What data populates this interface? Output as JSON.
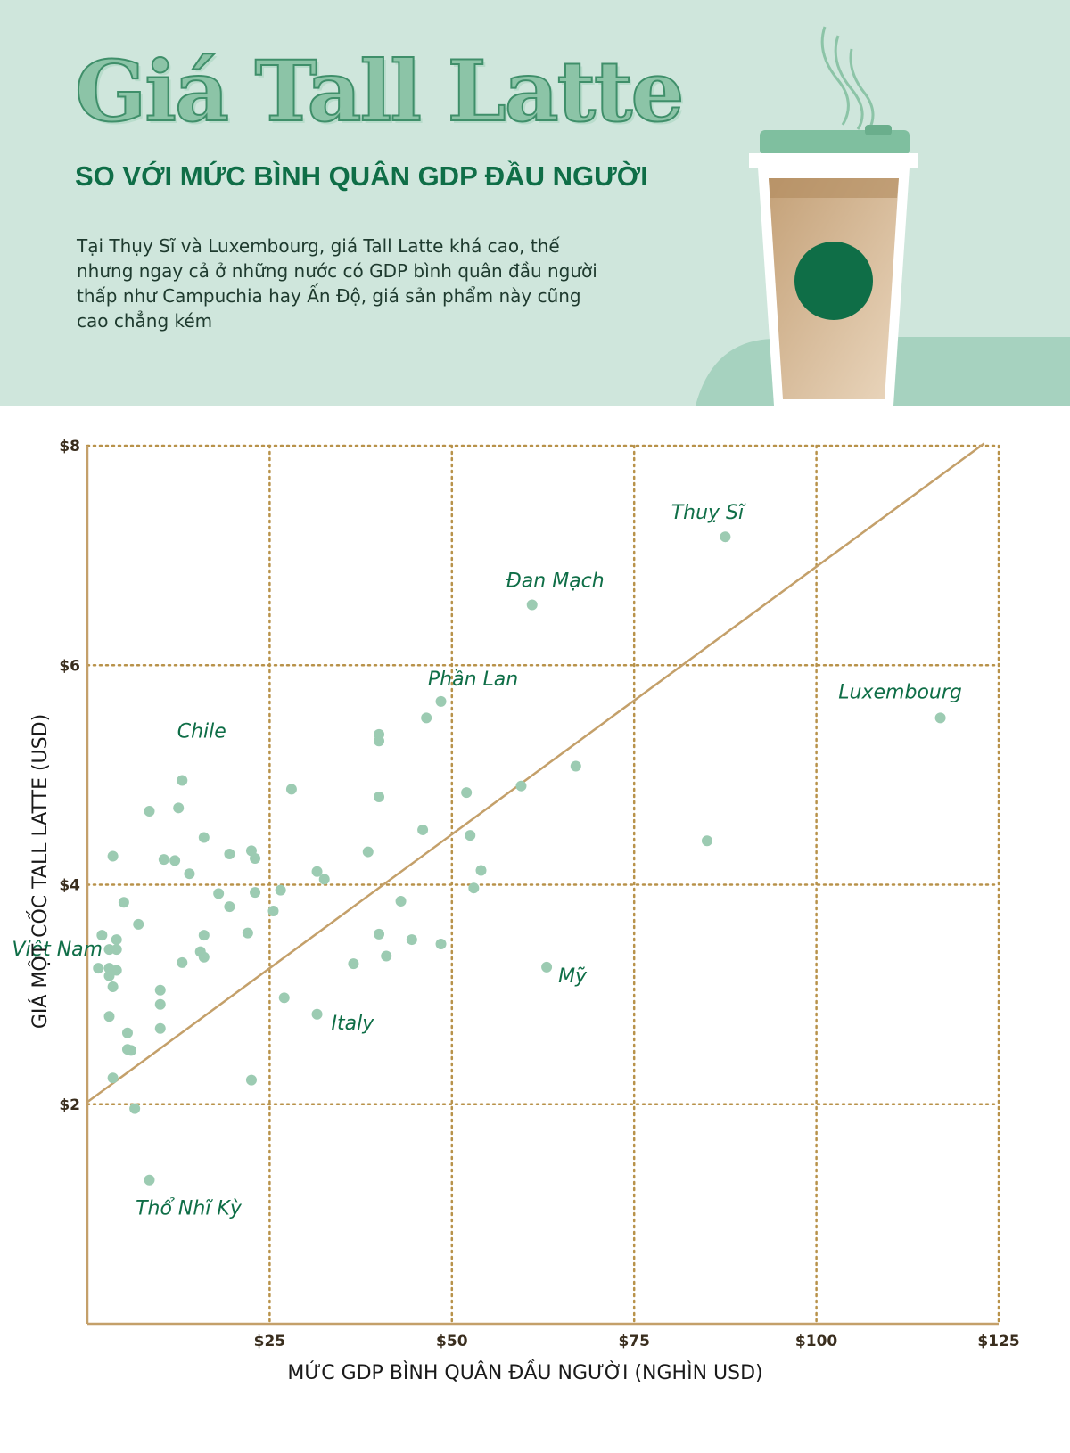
{
  "header": {
    "title": "Giá Tall Latte",
    "subtitle": "SO VỚI MỨC BÌNH QUÂN GDP ĐẦU NGƯỜI",
    "description_lines": [
      "Tại Thụy Sĩ và Luxembourg, giá Tall Latte khá cao, thế",
      "nhưng ngay cả ở những nước có GDP bình quân đầu người",
      "thấp như Campuchia hay Ấn Độ, giá sản phẩm này cũng",
      "cao chẳng kém"
    ]
  },
  "colors": {
    "header_bg": "#cfe6dc",
    "accent_green": "#0f6e47",
    "point": "#9ccbb2",
    "trend": "#c4a06a",
    "grid": "#b8924a"
  },
  "chart_data": {
    "type": "scatter",
    "xlabel": "MỨC GDP BÌNH QUÂN ĐẦU NGƯỜI (NGHÌN USD)",
    "ylabel": "GIÁ MỘT CỐC TALL LATTE (USD)",
    "xlim": [
      0,
      125
    ],
    "ylim": [
      0,
      8
    ],
    "x_ticks": [
      25,
      50,
      75,
      100,
      125
    ],
    "x_tick_labels": [
      "$25",
      "$50",
      "$75",
      "$100",
      "$125"
    ],
    "y_ticks": [
      2,
      4,
      6,
      8
    ],
    "y_tick_labels": [
      "$2",
      "$4",
      "$6",
      "$8"
    ],
    "grid": true,
    "trend_line": {
      "x": [
        0,
        123
      ],
      "y": [
        2.02,
        8.02
      ]
    },
    "labeled_points": [
      {
        "label": "Thuỵ Sĩ",
        "x": 87.5,
        "y": 7.17
      },
      {
        "label": "Đan Mạch",
        "x": 61,
        "y": 6.55
      },
      {
        "label": "Phần Lan",
        "x": 48.5,
        "y": 5.67
      },
      {
        "label": "Luxembourg",
        "x": 117,
        "y": 5.52
      },
      {
        "label": "Chile",
        "x": 13,
        "y": 4.95
      },
      {
        "label": "Việt Nam",
        "x": 1.5,
        "y": 3.24
      },
      {
        "label": "Mỹ",
        "x": 63,
        "y": 3.25
      },
      {
        "label": "Italy",
        "x": 31.5,
        "y": 2.82
      },
      {
        "label": "Thổ Nhĩ Kỳ",
        "x": 8.5,
        "y": 1.31
      }
    ],
    "points": [
      [
        87.5,
        7.17
      ],
      [
        61,
        6.55
      ],
      [
        48.5,
        5.67
      ],
      [
        117,
        5.52
      ],
      [
        46.5,
        5.52
      ],
      [
        40,
        5.37
      ],
      [
        40,
        5.31
      ],
      [
        67,
        5.08
      ],
      [
        59.5,
        4.9
      ],
      [
        28,
        4.87
      ],
      [
        52,
        4.84
      ],
      [
        40,
        4.8
      ],
      [
        13,
        4.95
      ],
      [
        12.5,
        4.7
      ],
      [
        8.5,
        4.67
      ],
      [
        46,
        4.5
      ],
      [
        52.5,
        4.45
      ],
      [
        85,
        4.4
      ],
      [
        16,
        4.43
      ],
      [
        22.5,
        4.31
      ],
      [
        19.5,
        4.28
      ],
      [
        23,
        4.24
      ],
      [
        38.5,
        4.3
      ],
      [
        3.5,
        4.26
      ],
      [
        10.5,
        4.23
      ],
      [
        12,
        4.22
      ],
      [
        14,
        4.1
      ],
      [
        31.5,
        4.12
      ],
      [
        32.5,
        4.05
      ],
      [
        54,
        4.13
      ],
      [
        26.5,
        3.95
      ],
      [
        18,
        3.92
      ],
      [
        23,
        3.93
      ],
      [
        53,
        3.97
      ],
      [
        5,
        3.84
      ],
      [
        43,
        3.85
      ],
      [
        19.5,
        3.8
      ],
      [
        25.5,
        3.76
      ],
      [
        7,
        3.64
      ],
      [
        2,
        3.54
      ],
      [
        16,
        3.54
      ],
      [
        22,
        3.56
      ],
      [
        40,
        3.55
      ],
      [
        44.5,
        3.5
      ],
      [
        4,
        3.5
      ],
      [
        48.5,
        3.46
      ],
      [
        3,
        3.41
      ],
      [
        4,
        3.41
      ],
      [
        15.5,
        3.39
      ],
      [
        16,
        3.34
      ],
      [
        41,
        3.35
      ],
      [
        13,
        3.29
      ],
      [
        36.5,
        3.28
      ],
      [
        1.5,
        3.24
      ],
      [
        3,
        3.24
      ],
      [
        4,
        3.22
      ],
      [
        3,
        3.17
      ],
      [
        63,
        3.25
      ],
      [
        3.5,
        3.07
      ],
      [
        10,
        3.04
      ],
      [
        27,
        2.97
      ],
      [
        10,
        2.91
      ],
      [
        31.5,
        2.82
      ],
      [
        3,
        2.8
      ],
      [
        5.5,
        2.65
      ],
      [
        10,
        2.69
      ],
      [
        5.5,
        2.5
      ],
      [
        6,
        2.49
      ],
      [
        3.5,
        2.24
      ],
      [
        22.5,
        2.22
      ],
      [
        6.5,
        1.96
      ],
      [
        8.5,
        1.31
      ]
    ]
  }
}
